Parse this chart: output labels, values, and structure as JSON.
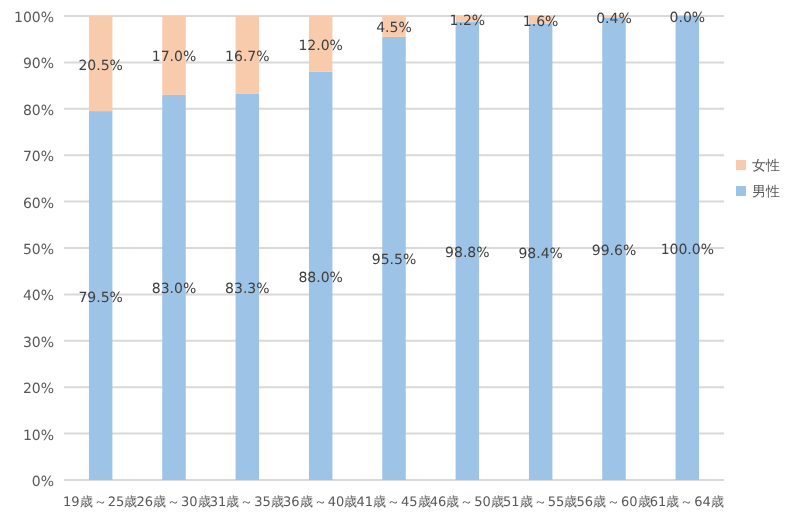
{
  "chart_data": {
    "type": "bar",
    "stacked": true,
    "categories": [
      "19歳～25歳",
      "26歳～30歳",
      "31歳～35歳",
      "36歳～40歳",
      "41歳～45歳",
      "46歳～50歳",
      "51歳～55歳",
      "56歳～60歳",
      "61歳～64歳"
    ],
    "series": [
      {
        "name": "男性",
        "color": "#9dc3e6",
        "values": [
          79.5,
          83.0,
          83.3,
          88.0,
          95.5,
          98.8,
          98.4,
          99.6,
          100.0
        ],
        "value_labels": [
          "79.5%",
          "83.0%",
          "83.3%",
          "88.0%",
          "95.5%",
          "98.8%",
          "98.4%",
          "99.6%",
          "100.0%"
        ]
      },
      {
        "name": "女性",
        "color": "#f8cbad",
        "values": [
          20.5,
          17.0,
          16.7,
          12.0,
          4.5,
          1.2,
          1.6,
          0.4,
          0.0
        ],
        "value_labels": [
          "20.5%",
          "17.0%",
          "16.7%",
          "12.0%",
          "4.5%",
          "1.2%",
          "1.6%",
          "0.4%",
          "0.0%"
        ]
      }
    ],
    "ylim": [
      0,
      100
    ],
    "yticks": [
      {
        "value": 0,
        "label": "0%"
      },
      {
        "value": 10,
        "label": "10%"
      },
      {
        "value": 20,
        "label": "20%"
      },
      {
        "value": 30,
        "label": "30%"
      },
      {
        "value": 40,
        "label": "40%"
      },
      {
        "value": 50,
        "label": "50%"
      },
      {
        "value": 60,
        "label": "60%"
      },
      {
        "value": 70,
        "label": "70%"
      },
      {
        "value": 80,
        "label": "80%"
      },
      {
        "value": 90,
        "label": "90%"
      },
      {
        "value": 100,
        "label": "100%"
      }
    ],
    "grid": "y",
    "legend": "right"
  }
}
